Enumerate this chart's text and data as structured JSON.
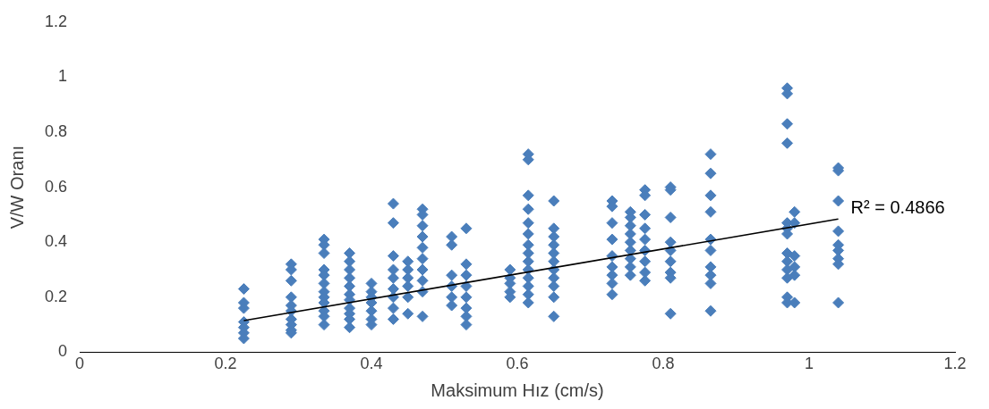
{
  "chart_data": {
    "type": "scatter",
    "xlabel": "Maksimum Hız (cm/s)",
    "ylabel": "V/W Oranı",
    "marker": "diamond",
    "grid": false,
    "legend": false,
    "xlim": [
      0,
      1.2
    ],
    "xticks": [
      0,
      0.2,
      0.4,
      0.6,
      0.8,
      1,
      1.2
    ],
    "ylim": [
      0,
      1.2
    ],
    "yticks": [
      0,
      0.2,
      0.4,
      0.6,
      0.8,
      1,
      1.2
    ],
    "series": [
      {
        "color": "#4a7ebb",
        "x": [
          0.225,
          0.225,
          0.225,
          0.225,
          0.225,
          0.225,
          0.225,
          0.29,
          0.29,
          0.29,
          0.29,
          0.29,
          0.29,
          0.29,
          0.29,
          0.29,
          0.29,
          0.335,
          0.335,
          0.335,
          0.335,
          0.335,
          0.335,
          0.335,
          0.335,
          0.335,
          0.335,
          0.335,
          0.335,
          0.37,
          0.37,
          0.37,
          0.37,
          0.37,
          0.37,
          0.37,
          0.37,
          0.37,
          0.37,
          0.37,
          0.4,
          0.4,
          0.4,
          0.4,
          0.4,
          0.4,
          0.4,
          0.43,
          0.43,
          0.43,
          0.43,
          0.43,
          0.43,
          0.43,
          0.43,
          0.43,
          0.45,
          0.45,
          0.45,
          0.45,
          0.45,
          0.45,
          0.47,
          0.47,
          0.47,
          0.47,
          0.47,
          0.47,
          0.47,
          0.47,
          0.47,
          0.47,
          0.51,
          0.51,
          0.51,
          0.51,
          0.51,
          0.51,
          0.53,
          0.53,
          0.53,
          0.53,
          0.53,
          0.53,
          0.53,
          0.53,
          0.59,
          0.59,
          0.59,
          0.59,
          0.59,
          0.615,
          0.615,
          0.615,
          0.615,
          0.615,
          0.615,
          0.615,
          0.615,
          0.615,
          0.615,
          0.615,
          0.615,
          0.615,
          0.615,
          0.65,
          0.65,
          0.65,
          0.65,
          0.65,
          0.65,
          0.65,
          0.65,
          0.65,
          0.65,
          0.65,
          0.73,
          0.73,
          0.73,
          0.73,
          0.73,
          0.73,
          0.73,
          0.73,
          0.73,
          0.755,
          0.755,
          0.755,
          0.755,
          0.755,
          0.755,
          0.755,
          0.755,
          0.755,
          0.775,
          0.775,
          0.775,
          0.775,
          0.775,
          0.775,
          0.775,
          0.775,
          0.775,
          0.81,
          0.81,
          0.81,
          0.81,
          0.81,
          0.81,
          0.81,
          0.81,
          0.81,
          0.865,
          0.865,
          0.865,
          0.865,
          0.865,
          0.865,
          0.865,
          0.865,
          0.865,
          0.865,
          0.97,
          0.97,
          0.97,
          0.97,
          0.97,
          0.97,
          0.97,
          0.97,
          0.97,
          0.97,
          0.97,
          0.97,
          0.97,
          0.98,
          0.98,
          0.98,
          0.98,
          0.98,
          0.98,
          1.04,
          1.04,
          1.04,
          1.04,
          1.04,
          1.04,
          1.04,
          1.04,
          1.04
        ],
        "values": [
          0.23,
          0.18,
          0.16,
          0.11,
          0.09,
          0.07,
          0.05,
          0.32,
          0.3,
          0.26,
          0.2,
          0.17,
          0.15,
          0.12,
          0.1,
          0.08,
          0.07,
          0.41,
          0.39,
          0.36,
          0.3,
          0.28,
          0.25,
          0.22,
          0.2,
          0.18,
          0.15,
          0.13,
          0.1,
          0.36,
          0.33,
          0.3,
          0.27,
          0.24,
          0.21,
          0.19,
          0.16,
          0.14,
          0.12,
          0.09,
          0.25,
          0.22,
          0.2,
          0.18,
          0.15,
          0.12,
          0.1,
          0.54,
          0.47,
          0.35,
          0.3,
          0.27,
          0.23,
          0.2,
          0.16,
          0.12,
          0.33,
          0.3,
          0.27,
          0.24,
          0.2,
          0.14,
          0.52,
          0.5,
          0.46,
          0.42,
          0.38,
          0.34,
          0.3,
          0.26,
          0.22,
          0.13,
          0.42,
          0.39,
          0.28,
          0.24,
          0.2,
          0.17,
          0.45,
          0.32,
          0.28,
          0.24,
          0.2,
          0.16,
          0.13,
          0.1,
          0.3,
          0.27,
          0.25,
          0.22,
          0.2,
          0.72,
          0.7,
          0.57,
          0.52,
          0.47,
          0.43,
          0.39,
          0.36,
          0.33,
          0.3,
          0.27,
          0.24,
          0.21,
          0.18,
          0.55,
          0.45,
          0.42,
          0.39,
          0.36,
          0.33,
          0.3,
          0.27,
          0.24,
          0.2,
          0.13,
          0.55,
          0.53,
          0.47,
          0.41,
          0.35,
          0.31,
          0.28,
          0.25,
          0.21,
          0.51,
          0.49,
          0.46,
          0.43,
          0.4,
          0.37,
          0.34,
          0.31,
          0.28,
          0.59,
          0.57,
          0.5,
          0.45,
          0.41,
          0.37,
          0.33,
          0.29,
          0.26,
          0.6,
          0.59,
          0.49,
          0.4,
          0.37,
          0.33,
          0.29,
          0.27,
          0.14,
          0.72,
          0.65,
          0.57,
          0.51,
          0.41,
          0.37,
          0.31,
          0.28,
          0.25,
          0.15,
          0.96,
          0.94,
          0.83,
          0.76,
          0.47,
          0.45,
          0.43,
          0.36,
          0.33,
          0.3,
          0.27,
          0.2,
          0.18,
          0.51,
          0.47,
          0.35,
          0.31,
          0.28,
          0.18,
          0.67,
          0.66,
          0.55,
          0.44,
          0.39,
          0.37,
          0.34,
          0.32,
          0.18
        ]
      },
      {
        "type": "line",
        "color": "#000000",
        "marker": "none",
        "x": [
          0.225,
          1.04
        ],
        "values": [
          0.115,
          0.484
        ]
      }
    ],
    "annotations": [
      {
        "text": "R² = 0.4866",
        "x": 1.04,
        "y": 0.484
      }
    ]
  }
}
